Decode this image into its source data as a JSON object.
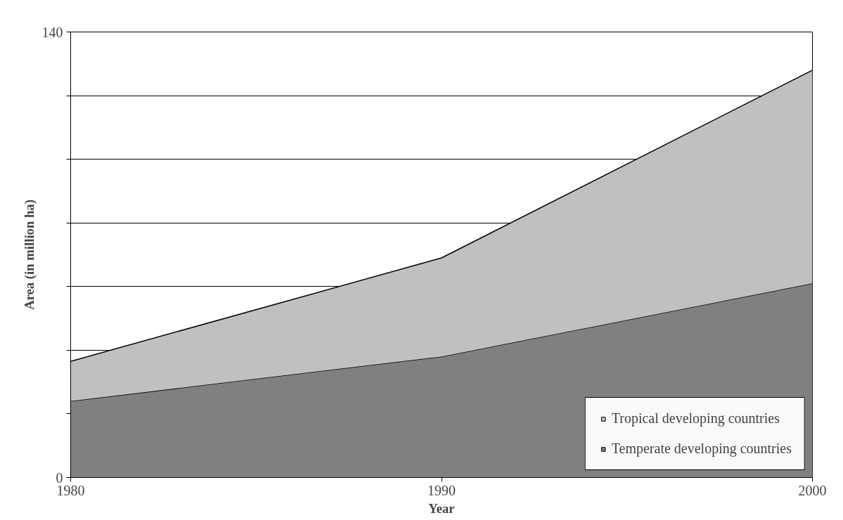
{
  "chart_data": {
    "type": "area",
    "stacked": true,
    "xlabel": "Year",
    "ylabel": "Area (in million ha)",
    "x": [
      1980,
      1990,
      2000
    ],
    "series": [
      {
        "name": "Temperate developing countries",
        "color": "#808080",
        "values": [
          24,
          38,
          61
        ]
      },
      {
        "name": "Tropical developing countries",
        "color": "#c0c0c0",
        "values": [
          12.5,
          31,
          67
        ]
      }
    ],
    "xlim": [
      1980,
      2000
    ],
    "xticks": [
      1980,
      1990,
      2000
    ],
    "ylim": [
      0,
      140
    ],
    "yticks": [
      0,
      {
        "value": 20,
        "label": null
      },
      {
        "value": 40,
        "label": null
      },
      {
        "value": 60,
        "label": null
      },
      {
        "value": 80,
        "label": null
      },
      {
        "value": 100,
        "label": null
      },
      {
        "value": 120,
        "label": null
      },
      140
    ],
    "grid": "y",
    "legend": "bottom right"
  }
}
